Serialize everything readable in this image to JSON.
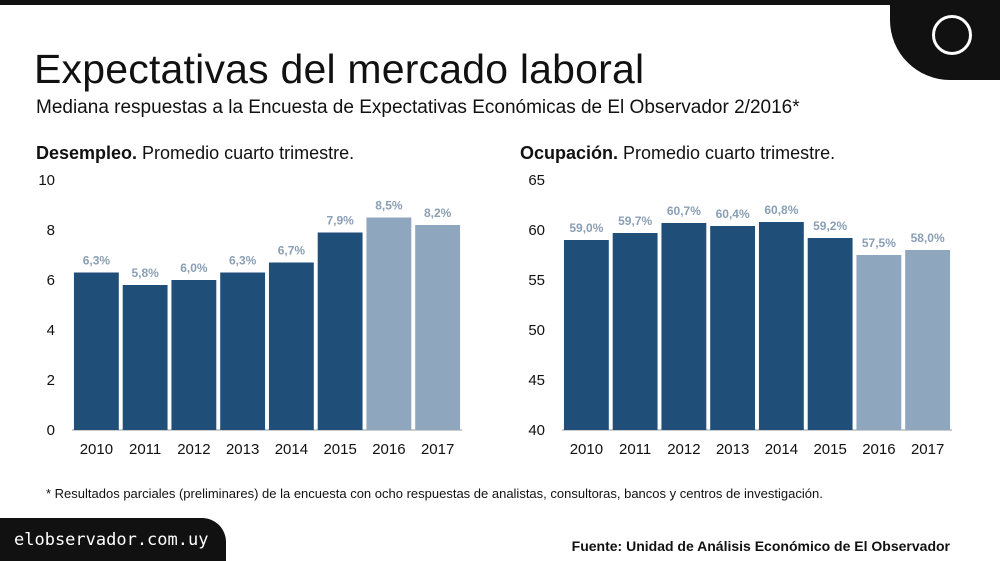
{
  "header": {
    "title": "Expectativas del mercado laboral",
    "subtitle": "Mediana respuestas a la Encuesta de Expectativas Económicas de El Observador 2/2016*"
  },
  "chart_data": [
    {
      "type": "bar",
      "title_bold": "Desempleo.",
      "title_rest": " Promedio cuarto trimestre.",
      "categories": [
        "2010",
        "2011",
        "2012",
        "2013",
        "2014",
        "2015",
        "2016",
        "2017"
      ],
      "values": [
        6.3,
        5.8,
        6.0,
        6.3,
        6.7,
        7.9,
        8.5,
        8.2
      ],
      "labels": [
        "6,3%",
        "5,8%",
        "6,0%",
        "6,3%",
        "6,7%",
        "7,9%",
        "8,5%",
        "8,2%"
      ],
      "yticks": [
        "10",
        "8",
        "6",
        "4",
        "2",
        "0"
      ],
      "ylim": [
        0,
        10
      ],
      "projected": [
        false,
        false,
        false,
        false,
        false,
        false,
        true,
        true
      ],
      "colors": {
        "actual": "#1f4e79",
        "projected": "#8fa6bf"
      }
    },
    {
      "type": "bar",
      "title_bold": "Ocupación.",
      "title_rest": " Promedio cuarto trimestre.",
      "categories": [
        "2010",
        "2011",
        "2012",
        "2013",
        "2014",
        "2015",
        "2016",
        "2017"
      ],
      "values": [
        59.0,
        59.7,
        60.7,
        60.4,
        60.8,
        59.2,
        57.5,
        58.0
      ],
      "labels": [
        "59,0%",
        "59,7%",
        "60,7%",
        "60,4%",
        "60,8%",
        "59,2%",
        "57,5%",
        "58,0%"
      ],
      "yticks": [
        "65",
        "60",
        "55",
        "50",
        "45",
        "40"
      ],
      "ylim": [
        40,
        65
      ],
      "projected": [
        false,
        false,
        false,
        false,
        false,
        false,
        true,
        true
      ],
      "colors": {
        "actual": "#1f4e79",
        "projected": "#8fa6bf"
      }
    }
  ],
  "footnote": "* Resultados parciales (preliminares) de la encuesta con ocho respuestas de analistas, consultoras, bancos y centros de investigación.",
  "footer": {
    "site": "elobservador.com.uy",
    "source": "Fuente: Unidad de Análisis Económico de El Observador"
  },
  "colors": {
    "label": "#8a9fb5",
    "axis": "#999999"
  }
}
